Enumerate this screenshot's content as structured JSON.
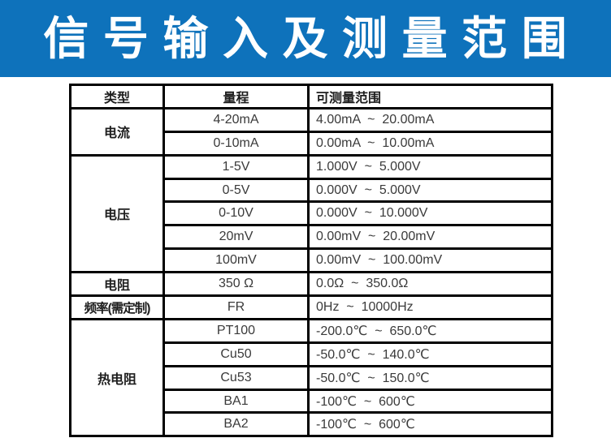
{
  "banner": {
    "title": "信 号 输 入 及 测 量 范 围"
  },
  "colors": {
    "banner_bg": "#0E72BB",
    "banner_fg": "#FFFFFF",
    "table_border": "#000000",
    "label_text": "#1D1D1D",
    "value_text": "#3A3A3A"
  },
  "table": {
    "headers": [
      "类型",
      "量程",
      "可测量范围"
    ],
    "groups": [
      {
        "type": "电流",
        "rows": [
          {
            "range": "4-20mA",
            "measure": "4.00mA  ~  20.00mA"
          },
          {
            "range": "0-10mA",
            "measure": "0.00mA  ~  10.00mA"
          }
        ]
      },
      {
        "type": "电压",
        "rows": [
          {
            "range": "1-5V",
            "measure": "1.000V  ~  5.000V"
          },
          {
            "range": "0-5V",
            "measure": "0.000V  ~  5.000V"
          },
          {
            "range": "0-10V",
            "measure": "0.000V  ~  10.000V"
          },
          {
            "range": "20mV",
            "measure": "0.00mV  ~  20.00mV"
          },
          {
            "range": "100mV",
            "measure": "0.00mV  ~  100.00mV"
          }
        ]
      },
      {
        "type": "电阻",
        "rows": [
          {
            "range": "350 Ω",
            "measure": "0.0Ω  ~  350.0Ω"
          }
        ]
      },
      {
        "type": "频率(需定制)",
        "rows": [
          {
            "range": "FR",
            "measure": "0Hz  ~  10000Hz"
          }
        ]
      },
      {
        "type": "热电阻",
        "rows": [
          {
            "range": "PT100",
            "measure": "-200.0℃  ~  650.0℃"
          },
          {
            "range": "Cu50",
            "measure": "-50.0℃  ~  140.0℃"
          },
          {
            "range": "Cu53",
            "measure": "-50.0℃  ~  150.0℃"
          },
          {
            "range": "BA1",
            "measure": "-100℃  ~  600℃"
          },
          {
            "range": "BA2",
            "measure": "-100℃  ~  600℃"
          }
        ]
      }
    ]
  }
}
